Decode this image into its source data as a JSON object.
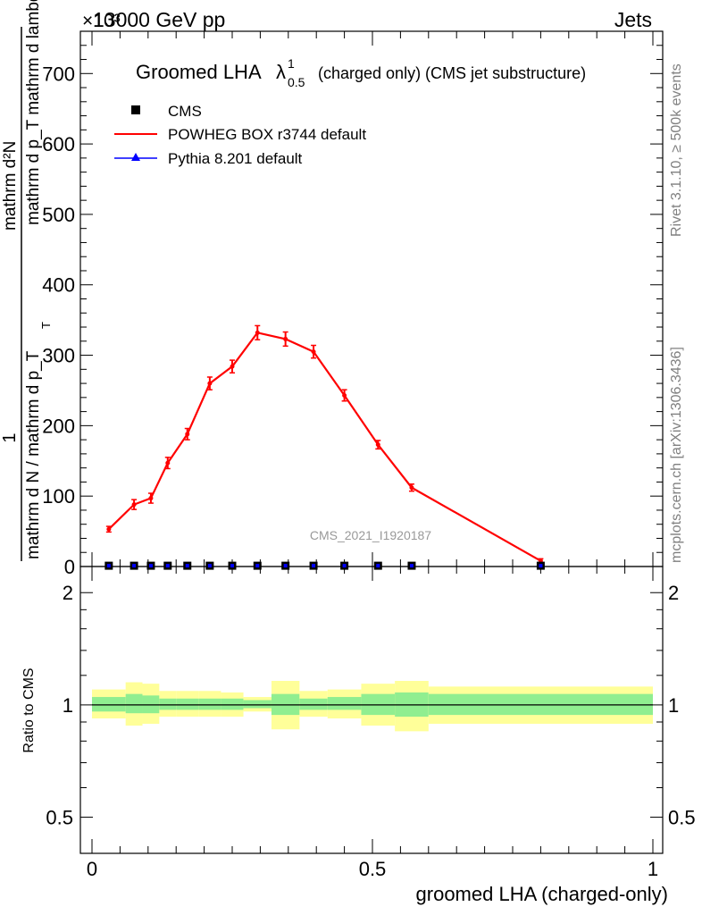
{
  "header": {
    "energy": "13000 GeV pp",
    "category": "Jets",
    "exponent": "×10³"
  },
  "legend": {
    "title_main": "Groomed LHA",
    "title_lambda": "λ",
    "title_sup": "1",
    "title_sub": "0.5",
    "title_rest": "(charged only) (CMS jet substructure)",
    "entries": [
      "CMS",
      "POWHEG BOX r3744 default",
      "Pythia 8.201 default"
    ]
  },
  "side": {
    "rivet": "Rivet 3.1.10, ≥ 500k events",
    "mcplots": "mcplots.cern.ch [arXiv:1306.3436]"
  },
  "watermark": "CMS_2021_I1920187",
  "colors": {
    "cms": "#000000",
    "powheg": "#ff0000",
    "pythia": "#0000ff",
    "band_inner": "#90ee90",
    "band_outer": "#ffff99"
  },
  "chart_data": {
    "type": "line",
    "xlabel": "groomed LHA (charged-only)",
    "ylabel_parts": {
      "num": "1",
      "den": "mathrm d N / mathrm d p_T",
      "inner_num": "mathrm d²N",
      "inner_den": "mathrm d p_T mathrm d lambda",
      "sub_T": "T"
    },
    "xlim": [
      0,
      1
    ],
    "ylim": [
      0,
      760
    ],
    "yscale": 1000,
    "xticks": [
      0,
      0.5,
      1
    ],
    "xtick_labels": [
      "0",
      "0.5",
      "1"
    ],
    "yticks": [
      0,
      100,
      200,
      300,
      400,
      500,
      600,
      700
    ],
    "ytick_labels": [
      "0",
      "100",
      "200",
      "300",
      "400",
      "500",
      "600",
      "700"
    ],
    "series": [
      {
        "name": "CMS",
        "x": [
          0.03,
          0.075,
          0.105,
          0.135,
          0.17,
          0.21,
          0.25,
          0.295,
          0.345,
          0.395,
          0.45,
          0.51,
          0.57,
          0.8
        ],
        "values": [
          0.5,
          0.5,
          0.5,
          0.5,
          0.5,
          0.5,
          0.5,
          0.5,
          0.5,
          0.5,
          0.5,
          0.5,
          0.5,
          0.5
        ]
      },
      {
        "name": "POWHEG BOX r3744 default",
        "x": [
          0.03,
          0.075,
          0.105,
          0.135,
          0.17,
          0.21,
          0.25,
          0.295,
          0.345,
          0.395,
          0.45,
          0.51,
          0.57,
          0.8
        ],
        "values": [
          53,
          88,
          97,
          147,
          188,
          260,
          284,
          332,
          323,
          305,
          243,
          173,
          112,
          8
        ],
        "errors": [
          4,
          7,
          7,
          8,
          8,
          9,
          9,
          10,
          10,
          9,
          8,
          6,
          5,
          3
        ]
      }
    ],
    "ratio": {
      "ylabel": "Ratio to CMS",
      "yticks": [
        0.5,
        1,
        2
      ],
      "ytick_labels": [
        "0.5",
        "1",
        "2"
      ],
      "ylim": [
        0.4,
        2.35
      ],
      "bins": [
        {
          "x0": 0.0,
          "x1": 0.06,
          "inner": [
            0.96,
            1.05
          ],
          "outer": [
            0.92,
            1.1
          ]
        },
        {
          "x0": 0.06,
          "x1": 0.09,
          "inner": [
            0.95,
            1.07
          ],
          "outer": [
            0.88,
            1.15
          ]
        },
        {
          "x0": 0.09,
          "x1": 0.12,
          "inner": [
            0.95,
            1.06
          ],
          "outer": [
            0.89,
            1.14
          ]
        },
        {
          "x0": 0.12,
          "x1": 0.15,
          "inner": [
            0.97,
            1.04
          ],
          "outer": [
            0.93,
            1.09
          ]
        },
        {
          "x0": 0.15,
          "x1": 0.19,
          "inner": [
            0.97,
            1.04
          ],
          "outer": [
            0.93,
            1.09
          ]
        },
        {
          "x0": 0.19,
          "x1": 0.23,
          "inner": [
            0.97,
            1.04
          ],
          "outer": [
            0.93,
            1.09
          ]
        },
        {
          "x0": 0.23,
          "x1": 0.27,
          "inner": [
            0.97,
            1.04
          ],
          "outer": [
            0.93,
            1.08
          ]
        },
        {
          "x0": 0.27,
          "x1": 0.32,
          "inner": [
            0.98,
            1.03
          ],
          "outer": [
            0.96,
            1.05
          ]
        },
        {
          "x0": 0.32,
          "x1": 0.37,
          "inner": [
            0.94,
            1.07
          ],
          "outer": [
            0.86,
            1.16
          ]
        },
        {
          "x0": 0.37,
          "x1": 0.42,
          "inner": [
            0.97,
            1.04
          ],
          "outer": [
            0.93,
            1.09
          ]
        },
        {
          "x0": 0.42,
          "x1": 0.48,
          "inner": [
            0.97,
            1.05
          ],
          "outer": [
            0.92,
            1.1
          ]
        },
        {
          "x0": 0.48,
          "x1": 0.54,
          "inner": [
            0.94,
            1.07
          ],
          "outer": [
            0.88,
            1.14
          ]
        },
        {
          "x0": 0.54,
          "x1": 0.6,
          "inner": [
            0.93,
            1.08
          ],
          "outer": [
            0.85,
            1.16
          ]
        },
        {
          "x0": 0.6,
          "x1": 1.0,
          "inner": [
            0.94,
            1.07
          ],
          "outer": [
            0.89,
            1.12
          ]
        }
      ]
    }
  }
}
